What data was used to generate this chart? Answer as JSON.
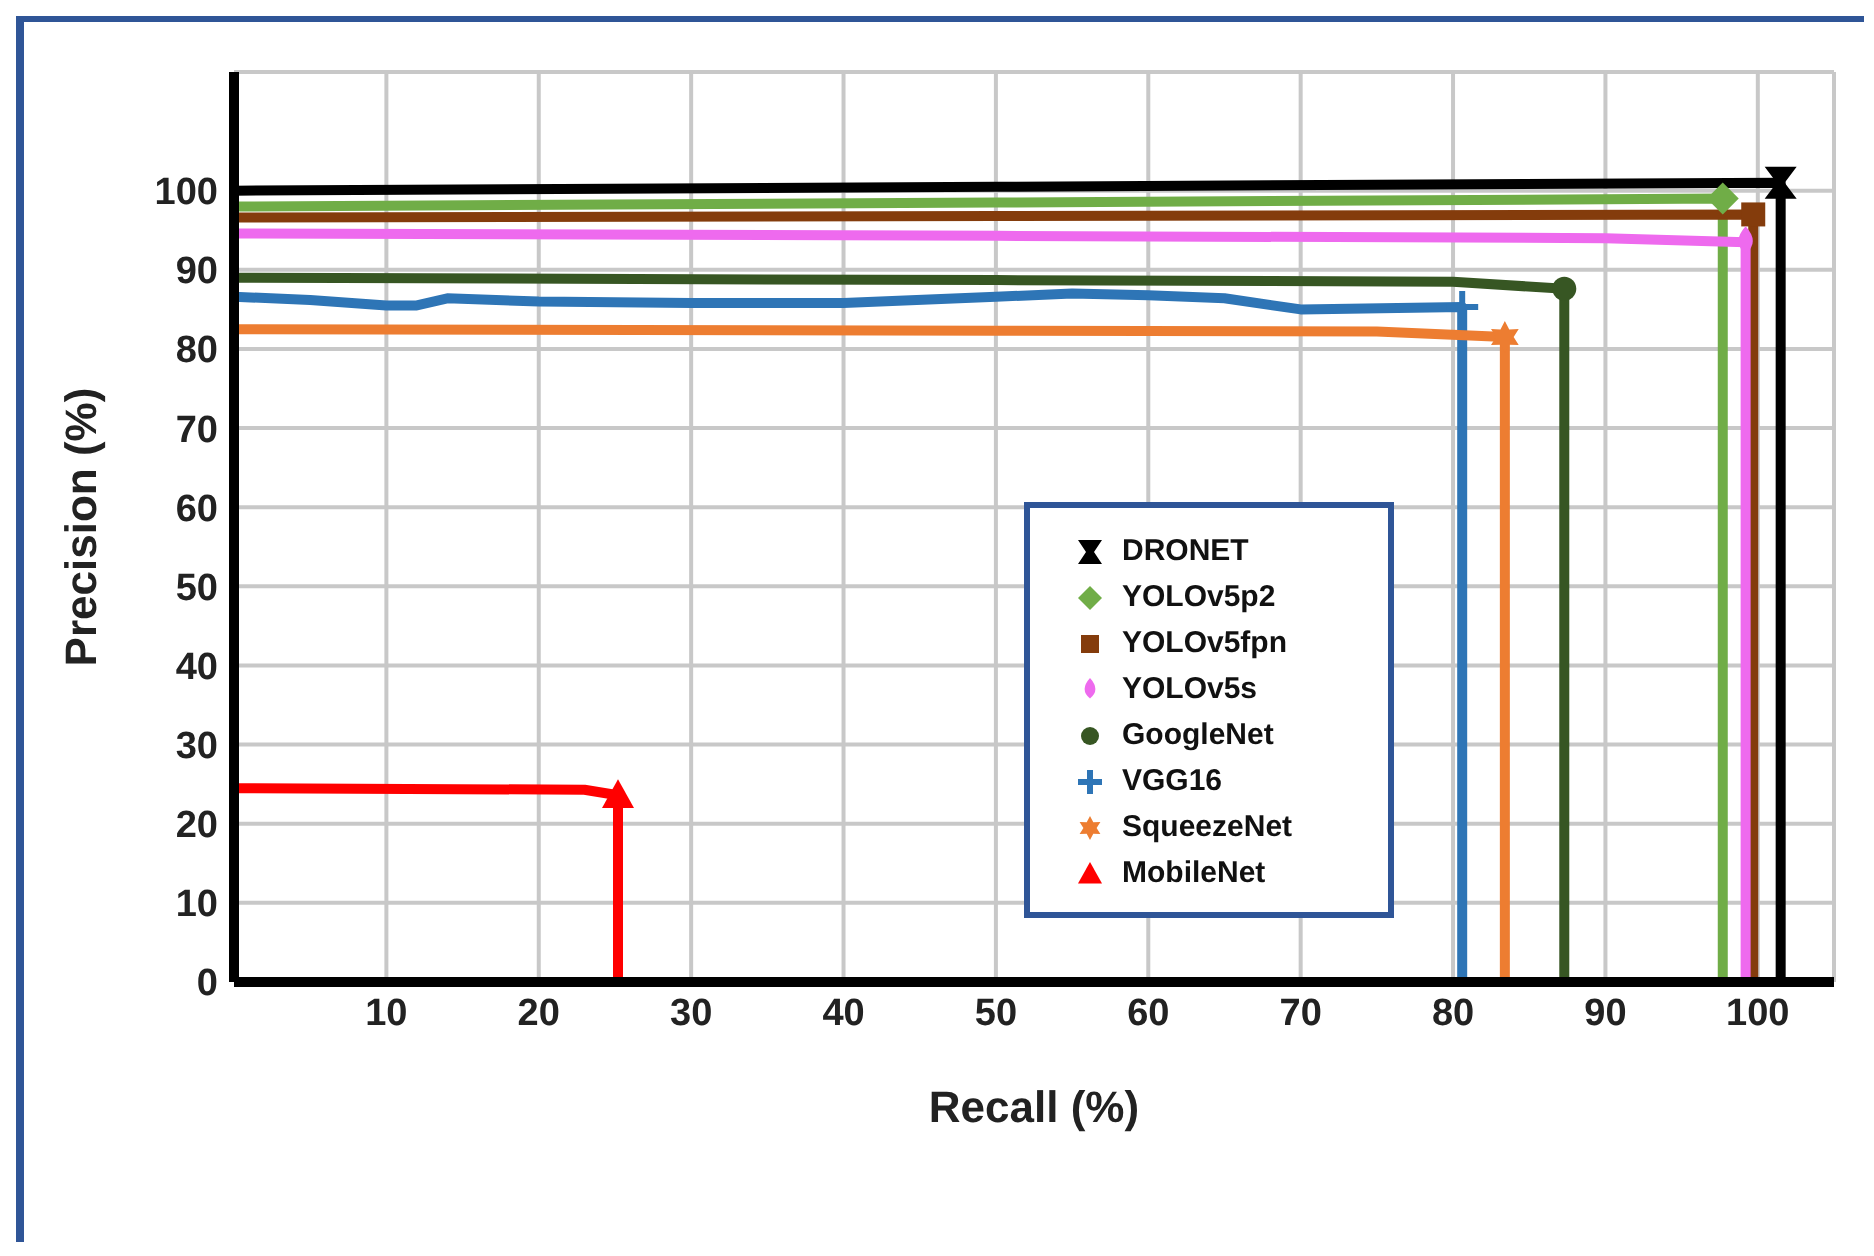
{
  "chart_data": {
    "type": "line",
    "xlabel": "Recall (%)",
    "ylabel": "Precision (%)",
    "xlim": [
      0,
      105
    ],
    "ylim": [
      0,
      115
    ],
    "xticks": [
      10,
      20,
      30,
      40,
      50,
      60,
      70,
      80,
      90,
      100
    ],
    "yticks": [
      0,
      10,
      20,
      30,
      40,
      50,
      60,
      70,
      80,
      90,
      100
    ],
    "grid": true,
    "legend": "center right",
    "series": [
      {
        "name": "DRONET",
        "color": "#000000",
        "x": [
          0,
          50,
          101.5,
          101.5
        ],
        "values": [
          100,
          100.5,
          101,
          0
        ]
      },
      {
        "name": "YOLOv5p2",
        "color": "#70ad47",
        "x": [
          0,
          50,
          97.7,
          97.7
        ],
        "values": [
          98,
          98.5,
          99,
          0
        ]
      },
      {
        "name": "YOLOv5fpn",
        "color": "#843c0c",
        "x": [
          0,
          50,
          99.7,
          99.7
        ],
        "values": [
          96.6,
          96.8,
          97,
          0
        ]
      },
      {
        "name": "YOLOv5s",
        "color": "#ee6aee",
        "x": [
          0,
          50,
          90,
          99.2,
          99.2
        ],
        "values": [
          94.6,
          94.3,
          94,
          93.5,
          0
        ]
      },
      {
        "name": "GoogleNet",
        "color": "#375623",
        "x": [
          0,
          50,
          80,
          87.3,
          87.3
        ],
        "values": [
          89,
          88.7,
          88.5,
          87.6,
          0
        ]
      },
      {
        "name": "VGG16",
        "color": "#2e75b6",
        "x": [
          0,
          5,
          10,
          12,
          14,
          20,
          30,
          40,
          50,
          55,
          60,
          65,
          70,
          80.6,
          80.6
        ],
        "values": [
          86.6,
          86.2,
          85.5,
          85.5,
          86.4,
          86,
          85.8,
          85.8,
          86.6,
          87,
          86.8,
          86.4,
          85,
          85.3,
          0
        ]
      },
      {
        "name": "SqueezeNet",
        "color": "#ed7d31",
        "x": [
          0,
          50,
          75,
          83.4,
          83.4
        ],
        "values": [
          82.5,
          82.3,
          82.2,
          81.5,
          0
        ]
      },
      {
        "name": "MobileNet",
        "color": "#ff0000",
        "x": [
          0,
          23,
          25.2,
          25.2
        ],
        "values": [
          24.5,
          24.3,
          23.6,
          0
        ]
      }
    ]
  }
}
